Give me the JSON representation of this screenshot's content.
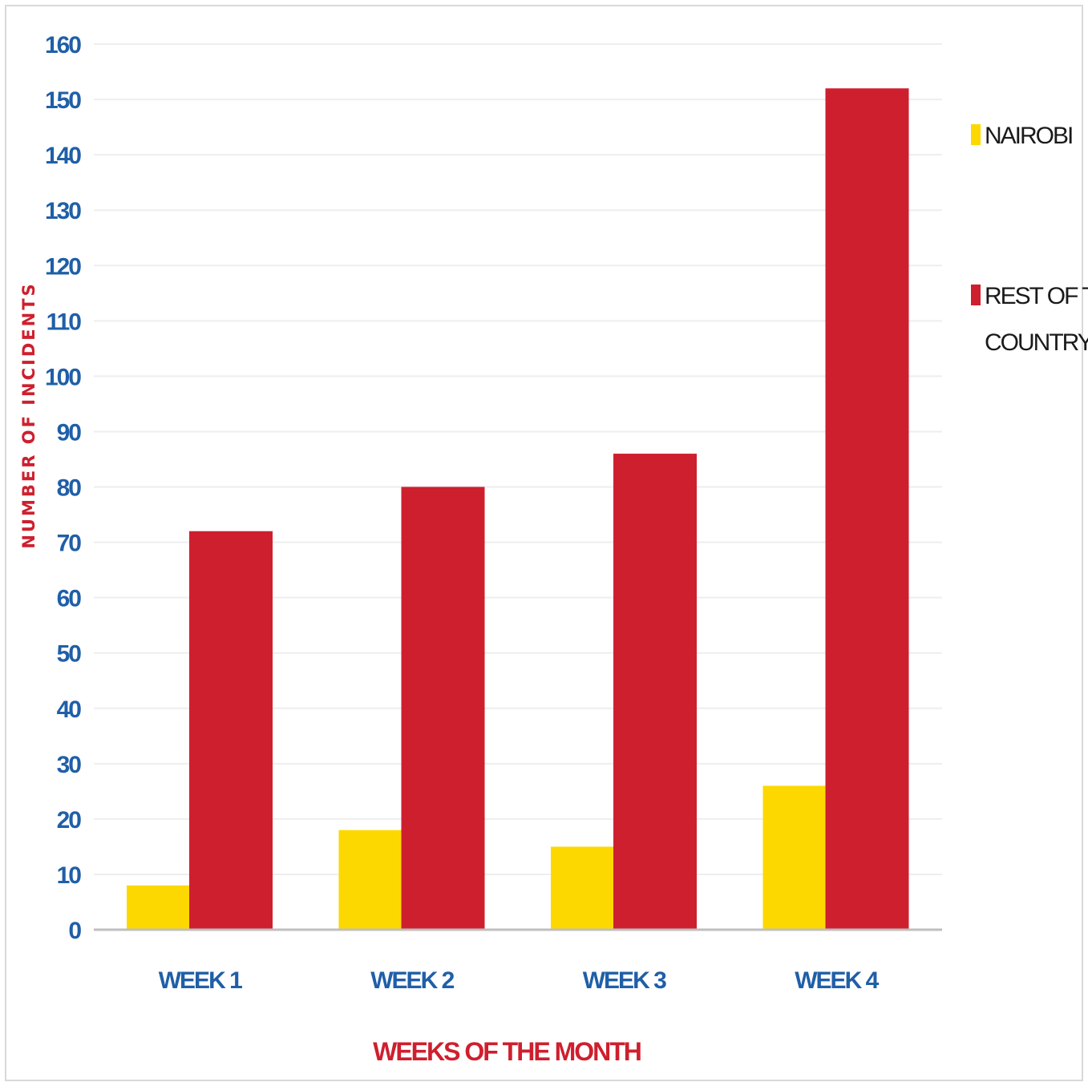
{
  "chart_data": {
    "type": "bar",
    "categories": [
      "WEEK 1",
      "WEEK 2",
      "WEEK 3",
      "WEEK 4"
    ],
    "series": [
      {
        "name": "NAIROBI",
        "values": [
          8,
          18,
          15,
          26
        ],
        "color": "#fdd800"
      },
      {
        "name": "REST OF THE COUNTRY",
        "values": [
          72,
          80,
          86,
          152
        ],
        "color": "#ce1f2e"
      }
    ],
    "xlabel": "WEEKS OF THE MONTH",
    "ylabel": "NUMBER OF INCIDENTS",
    "ylim": [
      0,
      160
    ],
    "yticks": [
      0,
      10,
      20,
      30,
      40,
      50,
      60,
      70,
      80,
      90,
      100,
      110,
      120,
      130,
      140,
      150,
      160
    ],
    "grid": true,
    "legend_position": "right",
    "colors": {
      "axis_label": "#ce1f2e",
      "tick_label": "#1f5fa8",
      "gridline": "#eeeeee",
      "baseline": "#bfbfbf"
    }
  }
}
